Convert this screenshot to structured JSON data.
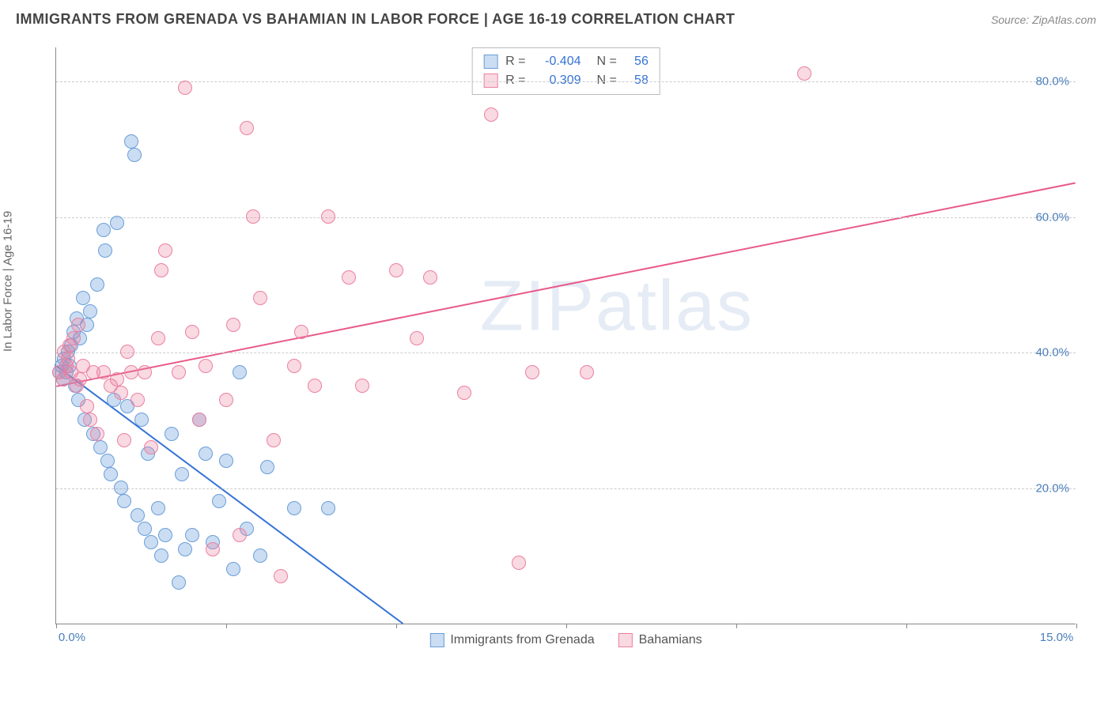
{
  "header": {
    "title": "IMMIGRANTS FROM GRENADA VS BAHAMIAN IN LABOR FORCE | AGE 16-19 CORRELATION CHART",
    "source_prefix": "Source: ",
    "source_name": "ZipAtlas.com"
  },
  "watermark": "ZIPatlas",
  "chart": {
    "type": "scatter",
    "y_axis_label": "In Labor Force | Age 16-19",
    "xlim": [
      0,
      15
    ],
    "ylim": [
      0,
      85
    ],
    "x_ticks": [
      0,
      2.5,
      5,
      7.5,
      10,
      12.5,
      15
    ],
    "x_tick_labels": {
      "0": "0.0%",
      "15": "15.0%"
    },
    "y_ticks": [
      20,
      40,
      60,
      80
    ],
    "y_tick_labels": {
      "20": "20.0%",
      "40": "40.0%",
      "60": "60.0%",
      "80": "80.0%"
    },
    "grid_color": "#cccccc",
    "axis_color": "#888888",
    "background_color": "#ffffff",
    "marker_size": 18,
    "label_fontsize": 15,
    "tick_fontsize": 15,
    "tick_color": "#4a7ebb",
    "series": [
      {
        "name": "Immigrants from Grenada",
        "color_fill": "rgba(106,158,218,0.35)",
        "color_stroke": "#6a9eda",
        "line_color": "#3573d6",
        "line_width": 2,
        "R": "-0.404",
        "N": "56",
        "trend": {
          "x1": 0,
          "y1": 38,
          "x2": 5.1,
          "y2": 0
        },
        "points": [
          [
            0.05,
            37
          ],
          [
            0.08,
            38
          ],
          [
            0.1,
            36
          ],
          [
            0.12,
            39
          ],
          [
            0.15,
            37
          ],
          [
            0.18,
            40
          ],
          [
            0.2,
            38
          ],
          [
            0.22,
            41
          ],
          [
            0.25,
            43
          ],
          [
            0.28,
            35
          ],
          [
            0.3,
            45
          ],
          [
            0.32,
            33
          ],
          [
            0.35,
            42
          ],
          [
            0.4,
            48
          ],
          [
            0.42,
            30
          ],
          [
            0.45,
            44
          ],
          [
            0.5,
            46
          ],
          [
            0.55,
            28
          ],
          [
            0.6,
            50
          ],
          [
            0.65,
            26
          ],
          [
            0.7,
            58
          ],
          [
            0.72,
            55
          ],
          [
            0.75,
            24
          ],
          [
            0.8,
            22
          ],
          [
            0.85,
            33
          ],
          [
            0.9,
            59
          ],
          [
            0.95,
            20
          ],
          [
            1.0,
            18
          ],
          [
            1.05,
            32
          ],
          [
            1.1,
            71
          ],
          [
            1.15,
            69
          ],
          [
            1.2,
            16
          ],
          [
            1.25,
            30
          ],
          [
            1.3,
            14
          ],
          [
            1.35,
            25
          ],
          [
            1.4,
            12
          ],
          [
            1.5,
            17
          ],
          [
            1.55,
            10
          ],
          [
            1.6,
            13
          ],
          [
            1.7,
            28
          ],
          [
            1.8,
            6
          ],
          [
            1.85,
            22
          ],
          [
            1.9,
            11
          ],
          [
            2.0,
            13
          ],
          [
            2.1,
            30
          ],
          [
            2.2,
            25
          ],
          [
            2.3,
            12
          ],
          [
            2.4,
            18
          ],
          [
            2.5,
            24
          ],
          [
            2.6,
            8
          ],
          [
            2.7,
            37
          ],
          [
            2.8,
            14
          ],
          [
            3.0,
            10
          ],
          [
            3.1,
            23
          ],
          [
            3.5,
            17
          ],
          [
            4.0,
            17
          ]
        ]
      },
      {
        "name": "Bahamians",
        "color_fill": "rgba(235,128,160,0.30)",
        "color_stroke": "#eb80a0",
        "line_color": "#e85a88",
        "line_width": 2,
        "R": "0.309",
        "N": "58",
        "trend": {
          "x1": 0,
          "y1": 35,
          "x2": 15,
          "y2": 65
        },
        "points": [
          [
            0.05,
            37
          ],
          [
            0.1,
            36
          ],
          [
            0.12,
            40
          ],
          [
            0.15,
            38
          ],
          [
            0.18,
            39
          ],
          [
            0.2,
            41
          ],
          [
            0.22,
            37
          ],
          [
            0.25,
            42
          ],
          [
            0.3,
            35
          ],
          [
            0.32,
            44
          ],
          [
            0.35,
            36
          ],
          [
            0.4,
            38
          ],
          [
            0.45,
            32
          ],
          [
            0.5,
            30
          ],
          [
            0.55,
            37
          ],
          [
            0.6,
            28
          ],
          [
            0.7,
            37
          ],
          [
            0.8,
            35
          ],
          [
            0.9,
            36
          ],
          [
            1.0,
            27
          ],
          [
            1.1,
            37
          ],
          [
            1.2,
            33
          ],
          [
            1.3,
            37
          ],
          [
            1.4,
            26
          ],
          [
            1.5,
            42
          ],
          [
            1.55,
            52
          ],
          [
            1.6,
            55
          ],
          [
            1.8,
            37
          ],
          [
            1.9,
            79
          ],
          [
            2.0,
            43
          ],
          [
            2.1,
            30
          ],
          [
            2.2,
            38
          ],
          [
            2.3,
            11
          ],
          [
            2.5,
            33
          ],
          [
            2.6,
            44
          ],
          [
            2.7,
            13
          ],
          [
            2.8,
            73
          ],
          [
            2.9,
            60
          ],
          [
            3.0,
            48
          ],
          [
            3.2,
            27
          ],
          [
            3.3,
            7
          ],
          [
            3.5,
            38
          ],
          [
            3.6,
            43
          ],
          [
            3.8,
            35
          ],
          [
            4.0,
            60
          ],
          [
            4.3,
            51
          ],
          [
            4.5,
            35
          ],
          [
            5.0,
            52
          ],
          [
            5.3,
            42
          ],
          [
            5.5,
            51
          ],
          [
            6.0,
            34
          ],
          [
            6.4,
            75
          ],
          [
            6.8,
            9
          ],
          [
            7.0,
            37
          ],
          [
            7.8,
            37
          ],
          [
            11.0,
            81
          ],
          [
            1.05,
            40
          ],
          [
            0.95,
            34
          ]
        ]
      }
    ]
  },
  "stats_box": {
    "r_label": "R =",
    "n_label": "N ="
  },
  "bottom_legend": {
    "items": [
      "Immigrants from Grenada",
      "Bahamians"
    ]
  }
}
